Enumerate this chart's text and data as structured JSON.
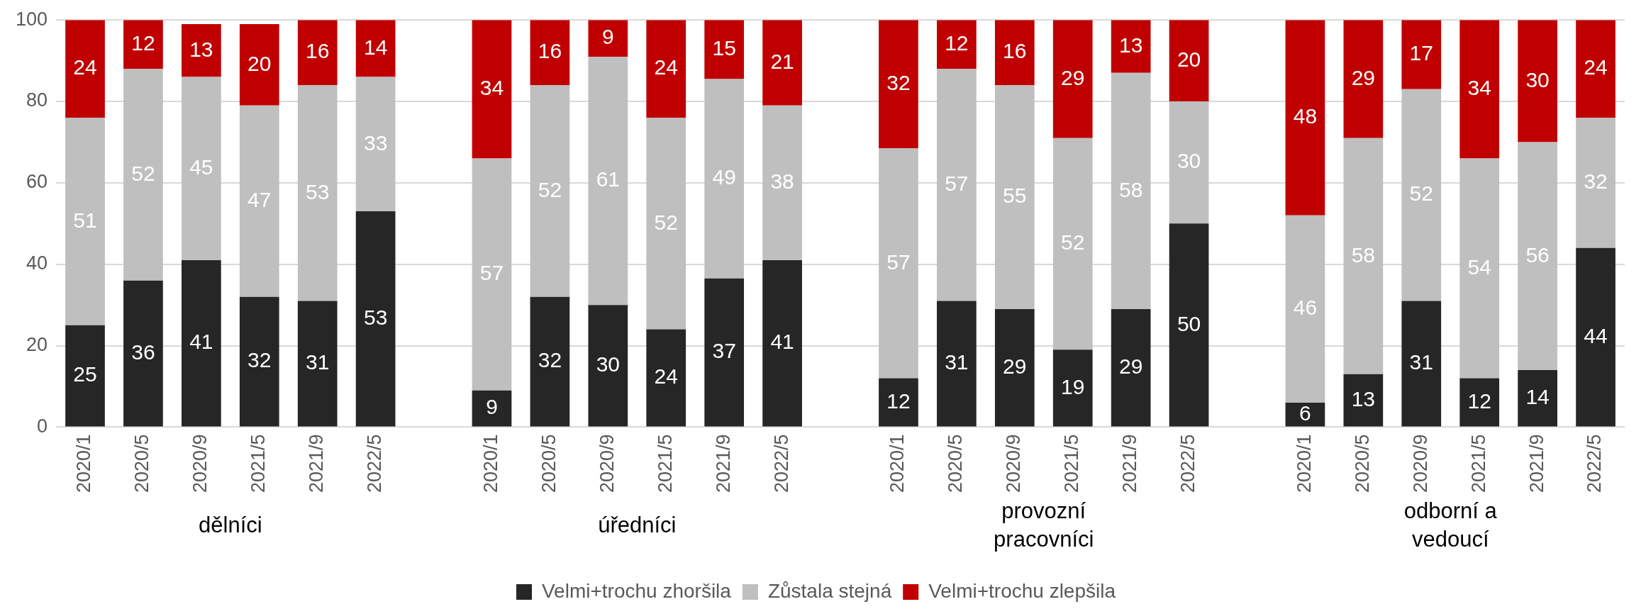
{
  "chart_data": {
    "type": "bar",
    "stacked": true,
    "grid": "y",
    "legend": "bottom",
    "categories": [
      "2020/1",
      "2020/5",
      "2020/9",
      "2021/5",
      "2021/9",
      "2022/5",
      null,
      "2020/1",
      "2020/5",
      "2020/9",
      "2021/5",
      "2021/9",
      "2022/5",
      null,
      "2020/1",
      "2020/5",
      "2020/9",
      "2021/5",
      "2021/9",
      "2022/5",
      null,
      "2020/1",
      "2020/5",
      "2020/9",
      "2021/5",
      "2021/9",
      "2022/5"
    ],
    "series": [
      {
        "name": "Velmi+trochu zhoršila",
        "color": "#262626",
        "values": [
          25,
          36,
          41,
          32,
          31,
          53,
          null,
          9,
          32,
          30,
          24,
          36.5,
          41,
          null,
          12,
          31,
          29,
          19,
          29,
          50,
          null,
          6,
          13,
          31,
          12,
          14,
          44
        ],
        "value_labels": [
          "25",
          "36",
          "41",
          "32",
          "31",
          "53",
          null,
          "9",
          "32",
          "30",
          "24",
          "37",
          "41",
          null,
          "12",
          "31",
          "29",
          "19",
          "29",
          "50",
          null,
          "6",
          "13",
          "31",
          "12",
          "14",
          "44"
        ]
      },
      {
        "name": "Zůstala stejná",
        "color": "#bfbfbf",
        "values": [
          51,
          52,
          45,
          47,
          53,
          33,
          null,
          57,
          52,
          61,
          52,
          49,
          38,
          null,
          56.5,
          57,
          55,
          52,
          58,
          30,
          null,
          46,
          58,
          52,
          54,
          56,
          32
        ],
        "value_labels": [
          "51",
          "52",
          "45",
          "47",
          "53",
          "33",
          null,
          "57",
          "52",
          "61",
          "52",
          "49",
          "38",
          null,
          "57",
          "57",
          "55",
          "52",
          "58",
          "30",
          null,
          "46",
          "58",
          "52",
          "54",
          "56",
          "32"
        ]
      },
      {
        "name": "Velmi+trochu zlepšila",
        "color": "#c00000",
        "values": [
          24,
          12,
          13,
          20,
          16,
          14,
          null,
          34,
          16,
          9,
          24,
          14.5,
          21,
          null,
          31.5,
          12,
          16,
          29,
          13,
          20,
          null,
          48,
          29,
          17,
          34,
          30,
          24
        ],
        "value_labels": [
          "24",
          "12",
          "13",
          "20",
          "16",
          "14",
          null,
          "34",
          "16",
          "9",
          "24",
          "15",
          "21",
          null,
          "32",
          "12",
          "16",
          "29",
          "13",
          "20",
          null,
          "48",
          "29",
          "17",
          "34",
          "30",
          "24"
        ]
      }
    ],
    "ylim": [
      0,
      100
    ],
    "yticks": [
      0,
      20,
      40,
      60,
      80,
      100
    ],
    "annotations": [
      "dělníci",
      "úředníci",
      "provozní pracovníci",
      "odborní a vedoucí"
    ]
  }
}
